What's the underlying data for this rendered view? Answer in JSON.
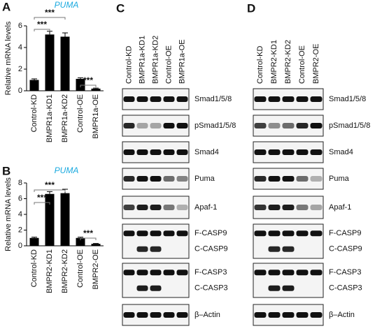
{
  "panel_labels": [
    "A",
    "B",
    "C",
    "D"
  ],
  "chart_data": [
    {
      "type": "bar",
      "title": "PUMA",
      "y_label": "Relative mRNA levels",
      "categories": [
        "Control-KD",
        "BMPR1a-KD1",
        "BMPR1a-KD2",
        "Control-OE",
        "BMPR1a-OE"
      ],
      "values": [
        1.0,
        5.2,
        5.0,
        1.1,
        0.2
      ],
      "errors": [
        0.1,
        0.3,
        0.35,
        0.1,
        0.05
      ],
      "color": "#000000",
      "ylim": [
        0,
        6
      ],
      "yticks": [
        0,
        2,
        4,
        6
      ],
      "annotations": [
        "***",
        "***",
        "***"
      ]
    },
    {
      "type": "bar",
      "title": "PUMA",
      "y_label": "Relative mRNA levels",
      "categories": [
        "Control-KD",
        "BMPR2-KD1",
        "BMPR2-KD2",
        "Control-OE",
        "BMPR2-OE"
      ],
      "values": [
        1.0,
        6.6,
        6.7,
        1.0,
        0.25
      ],
      "errors": [
        0.1,
        0.3,
        0.5,
        0.1,
        0.05
      ],
      "color": "#000000",
      "ylim": [
        0,
        8
      ],
      "yticks": [
        0,
        2,
        4,
        6,
        8
      ],
      "annotations": [
        "***",
        "***",
        "***"
      ]
    }
  ],
  "blots": [
    {
      "lanes": [
        "Control-KD",
        "BMPR1a-KD1",
        "BMPR1a-KD2",
        "Control-OE",
        "BMPR1a-OE"
      ],
      "boxes": [
        [
          "Smad1/5/8"
        ],
        [
          "pSmad1/5/8"
        ],
        [
          "Smad4"
        ],
        [
          "Puma"
        ],
        [
          "Apaf-1"
        ],
        [
          "F-CASP9",
          "C-CASP9"
        ],
        [
          "F-CASP3",
          "C-CASP3"
        ],
        [
          "β–Actin"
        ]
      ]
    },
    {
      "lanes": [
        "Control-KD",
        "BMPR2-KD1",
        "BMPR2-KD2",
        "Control-OE",
        "BMPR2-OE"
      ],
      "boxes": [
        [
          "Smad1/5/8"
        ],
        [
          "pSmad1/5/8"
        ],
        [
          "Smad4"
        ],
        [
          "Puma"
        ],
        [
          "Apaf-1"
        ],
        [
          "F-CASP9",
          "C-CASP9"
        ],
        [
          "F-CASP3",
          "C-CASP3"
        ],
        [
          "β–Actin"
        ]
      ]
    }
  ]
}
